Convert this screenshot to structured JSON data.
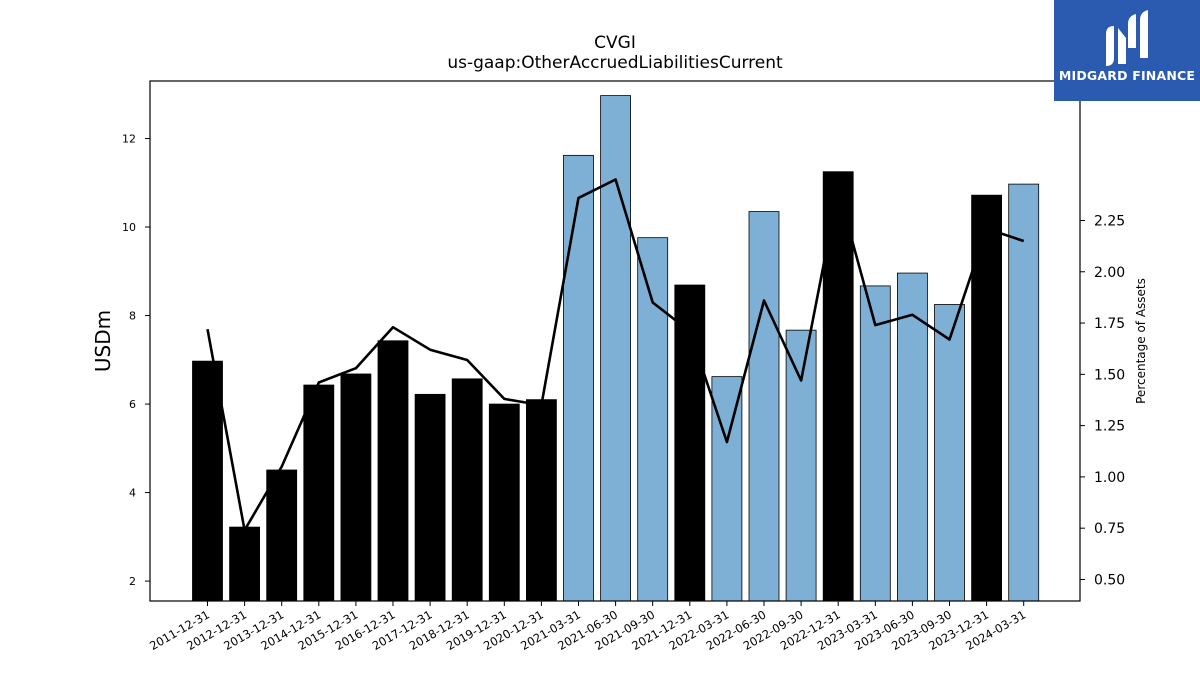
{
  "brand": {
    "name": "MIDGARD FINANCE",
    "bg_color": "#2b5bb0"
  },
  "chart_data": {
    "type": "bar",
    "title": "CVGI",
    "subtitle": "us-gaap:OtherAccruedLiabilitiesCurrent",
    "ylabel": "USDm",
    "y2label": "Percentage of Assets",
    "ylim": [
      1.55,
      13.3
    ],
    "y2lim": [
      0.395,
      2.93
    ],
    "yticks": [
      2,
      4,
      6,
      8,
      10,
      12
    ],
    "y2ticks": [
      "0.50",
      "0.75",
      "1.00",
      "1.25",
      "1.50",
      "1.75",
      "2.00",
      "2.25"
    ],
    "categories": [
      "2011-12-31",
      "2012-12-31",
      "2013-12-31",
      "2014-12-31",
      "2015-12-31",
      "2016-12-31",
      "2017-12-31",
      "2018-12-31",
      "2019-12-31",
      "2020-12-31",
      "2021-03-31",
      "2021-06-30",
      "2021-09-30",
      "2021-12-31",
      "2022-03-31",
      "2022-06-30",
      "2022-09-30",
      "2022-12-31",
      "2023-03-31",
      "2023-06-30",
      "2023-09-30",
      "2023-12-31",
      "2024-03-31"
    ],
    "series": [
      {
        "kind": "bar",
        "values": [
          6.97,
          3.22,
          4.51,
          6.43,
          6.68,
          7.43,
          6.22,
          6.57,
          6.0,
          6.1,
          11.62,
          12.97,
          9.76,
          8.69,
          6.62,
          10.35,
          7.67,
          11.25,
          8.67,
          8.96,
          8.25,
          10.72,
          10.97
        ],
        "period": [
          "annual",
          "annual",
          "annual",
          "annual",
          "annual",
          "annual",
          "annual",
          "annual",
          "annual",
          "annual",
          "quarter",
          "quarter",
          "quarter",
          "annual",
          "quarter",
          "quarter",
          "quarter",
          "annual",
          "quarter",
          "quarter",
          "quarter",
          "annual",
          "quarter"
        ]
      },
      {
        "kind": "line",
        "axis": "right",
        "values": [
          1.72,
          0.74,
          1.05,
          1.46,
          1.53,
          1.73,
          1.62,
          1.57,
          1.38,
          1.35,
          2.36,
          2.45,
          1.85,
          1.71,
          1.17,
          1.86,
          1.47,
          2.4,
          1.74,
          1.79,
          1.67,
          2.21,
          2.15
        ]
      }
    ],
    "colors": {
      "annual": "#000000",
      "quarter": "#7eb0d5",
      "line": "#000000"
    }
  }
}
